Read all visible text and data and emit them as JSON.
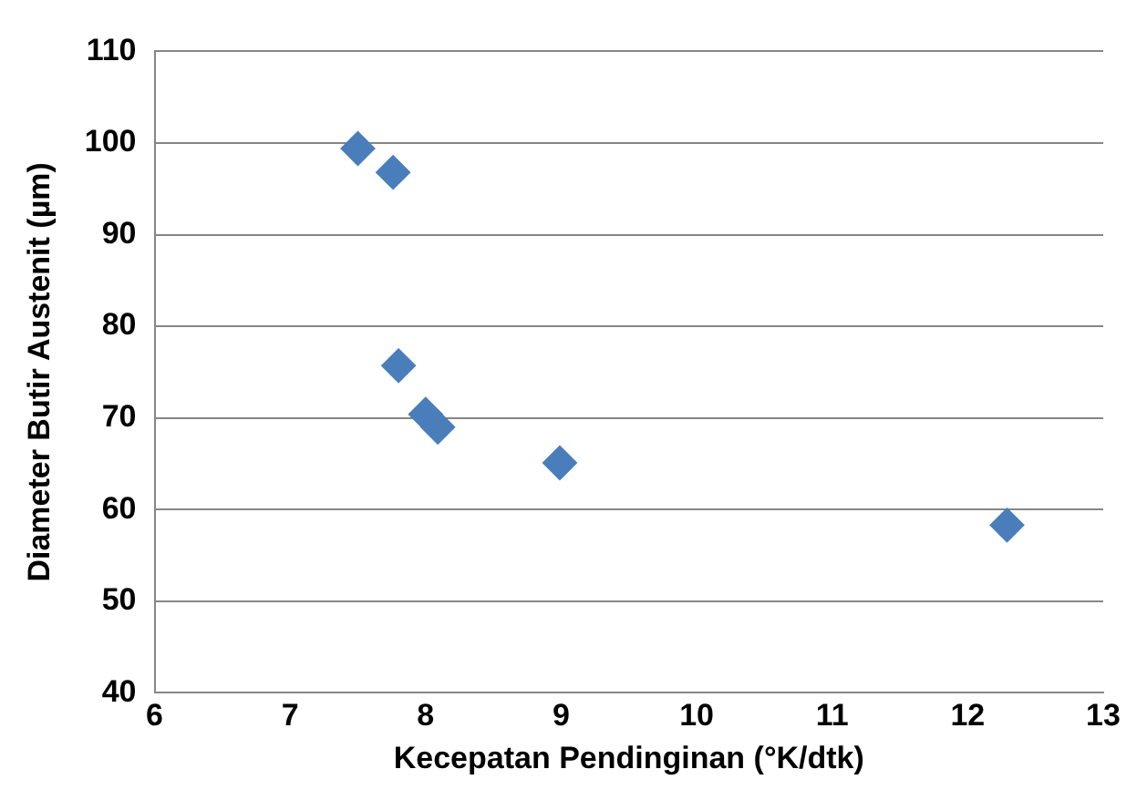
{
  "chart_data": {
    "type": "scatter",
    "xlabel": "Kecepatan Pendinginan (°K/dtk)",
    "ylabel": "Diameter Butir Austenit (µm)",
    "x": [
      7.5,
      7.76,
      7.8,
      8.0,
      8.09,
      8.99,
      12.29
    ],
    "series": [
      {
        "color": "#4a7ebb",
        "values": [
          99.4,
          96.8,
          75.7,
          70.4,
          69.0,
          65.1,
          58.3
        ]
      }
    ],
    "xlim": [
      6,
      13
    ],
    "xticks": [
      6,
      7,
      8,
      9,
      10,
      11,
      12,
      13
    ],
    "ylim": [
      40,
      110
    ],
    "yticks": [
      40,
      50,
      60,
      70,
      80,
      90,
      100,
      110
    ],
    "grid": "y",
    "legend": false,
    "marker": "diamond"
  }
}
